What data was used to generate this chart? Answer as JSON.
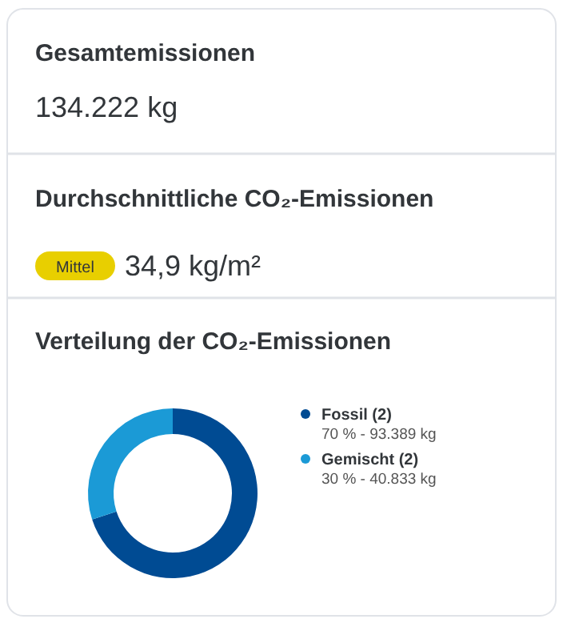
{
  "chart_data": [
    {
      "type": "other",
      "title": "Gesamtemissionen",
      "annotations": [
        "134.222 kg"
      ]
    },
    {
      "type": "other",
      "title": "Durchschnittliche CO₂-Emissionen",
      "annotations": [
        "Mittel",
        "34,9 kg/m²"
      ]
    },
    {
      "type": "donut",
      "title": "Verteilung der CO₂-Emissionen",
      "categories": [
        "Fossil (2)",
        "Gemischt (2)"
      ],
      "values": [
        70,
        30
      ],
      "colors": [
        "#004b93",
        "#1b9ad6"
      ],
      "value_labels": [
        "70 % - 93.389 kg",
        "30 % - 40.833 kg"
      ],
      "legend": "right"
    }
  ]
}
